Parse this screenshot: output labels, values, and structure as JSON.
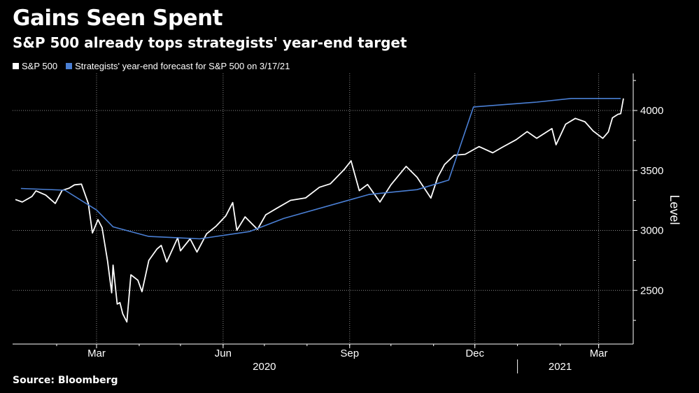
{
  "title": "Gains Seen Spent",
  "subtitle": "S&P 500 already tops strategists' year-end target",
  "source": "Source: Bloomberg",
  "colors": {
    "sp500": "#ffffff",
    "forecast": "#4a7fd4",
    "grid": "#8a8a8a",
    "background": "#000000"
  },
  "chart_data": {
    "type": "line",
    "title": "Gains Seen Spent",
    "subtitle": "S&P 500 already tops strategists' year-end target",
    "xlabel": "",
    "ylabel": "Level",
    "ylim": [
      2150,
      4300
    ],
    "yticks": [
      2500,
      3000,
      3500,
      4000
    ],
    "ytick_labels": [
      "2500",
      "3000",
      "3500",
      "4000"
    ],
    "x_range": [
      "2020-01-02",
      "2021-03-19"
    ],
    "xticks": [
      {
        "date": "2020-03-01",
        "label": "Mar"
      },
      {
        "date": "2020-06-01",
        "label": "Jun"
      },
      {
        "date": "2020-09-01",
        "label": "Sep"
      },
      {
        "date": "2020-12-01",
        "label": "Dec"
      },
      {
        "date": "2021-03-01",
        "label": "Mar"
      }
    ],
    "year_labels": [
      {
        "label": "2020",
        "center": "2020-07-01"
      },
      {
        "label": "2021",
        "center": "2021-02-01"
      }
    ],
    "year_divider": "2021-01-01",
    "grid": true,
    "legend": {
      "placement": "top-left",
      "entries": [
        "S&P 500",
        "Strategists' year-end forecast for S&P 500 on 3/17/21"
      ]
    },
    "series": [
      {
        "name": "S&P 500",
        "color": "#ffffff",
        "points": [
          [
            "2020-01-02",
            3258
          ],
          [
            "2020-01-07",
            3237
          ],
          [
            "2020-01-14",
            3283
          ],
          [
            "2020-01-17",
            3330
          ],
          [
            "2020-01-24",
            3295
          ],
          [
            "2020-01-31",
            3225
          ],
          [
            "2020-02-05",
            3334
          ],
          [
            "2020-02-10",
            3352
          ],
          [
            "2020-02-14",
            3380
          ],
          [
            "2020-02-19",
            3386
          ],
          [
            "2020-02-24",
            3225
          ],
          [
            "2020-02-27",
            2979
          ],
          [
            "2020-03-02",
            3090
          ],
          [
            "2020-03-05",
            3023
          ],
          [
            "2020-03-09",
            2746
          ],
          [
            "2020-03-12",
            2480
          ],
          [
            "2020-03-13",
            2711
          ],
          [
            "2020-03-16",
            2386
          ],
          [
            "2020-03-18",
            2398
          ],
          [
            "2020-03-20",
            2305
          ],
          [
            "2020-03-23",
            2237
          ],
          [
            "2020-03-26",
            2630
          ],
          [
            "2020-03-31",
            2585
          ],
          [
            "2020-04-03",
            2489
          ],
          [
            "2020-04-08",
            2750
          ],
          [
            "2020-04-14",
            2846
          ],
          [
            "2020-04-17",
            2875
          ],
          [
            "2020-04-21",
            2737
          ],
          [
            "2020-04-29",
            2939
          ],
          [
            "2020-05-01",
            2830
          ],
          [
            "2020-05-08",
            2930
          ],
          [
            "2020-05-13",
            2820
          ],
          [
            "2020-05-20",
            2972
          ],
          [
            "2020-05-27",
            3036
          ],
          [
            "2020-06-03",
            3122
          ],
          [
            "2020-06-08",
            3232
          ],
          [
            "2020-06-11",
            3002
          ],
          [
            "2020-06-17",
            3113
          ],
          [
            "2020-06-26",
            3009
          ],
          [
            "2020-07-02",
            3130
          ],
          [
            "2020-07-10",
            3185
          ],
          [
            "2020-07-20",
            3251
          ],
          [
            "2020-07-31",
            3271
          ],
          [
            "2020-08-10",
            3360
          ],
          [
            "2020-08-18",
            3389
          ],
          [
            "2020-08-28",
            3508
          ],
          [
            "2020-09-02",
            3580
          ],
          [
            "2020-09-08",
            3332
          ],
          [
            "2020-09-14",
            3383
          ],
          [
            "2020-09-23",
            3237
          ],
          [
            "2020-10-01",
            3380
          ],
          [
            "2020-10-12",
            3534
          ],
          [
            "2020-10-20",
            3443
          ],
          [
            "2020-10-30",
            3270
          ],
          [
            "2020-11-04",
            3443
          ],
          [
            "2020-11-09",
            3550
          ],
          [
            "2020-11-16",
            3627
          ],
          [
            "2020-11-24",
            3635
          ],
          [
            "2020-12-04",
            3699
          ],
          [
            "2020-12-14",
            3647
          ],
          [
            "2020-12-21",
            3694
          ],
          [
            "2020-12-31",
            3756
          ],
          [
            "2021-01-08",
            3824
          ],
          [
            "2021-01-15",
            3768
          ],
          [
            "2021-01-26",
            3849
          ],
          [
            "2021-01-29",
            3714
          ],
          [
            "2021-02-05",
            3886
          ],
          [
            "2021-02-12",
            3934
          ],
          [
            "2021-02-19",
            3906
          ],
          [
            "2021-02-25",
            3829
          ],
          [
            "2021-03-04",
            3768
          ],
          [
            "2021-03-08",
            3821
          ],
          [
            "2021-03-11",
            3939
          ],
          [
            "2021-03-15",
            3968
          ],
          [
            "2021-03-17",
            3974
          ],
          [
            "2021-03-19",
            4100
          ]
        ]
      },
      {
        "name": "Strategists' year-end forecast for S&P 500 on 3/17/21",
        "color": "#4a7fd4",
        "points": [
          [
            "2020-01-06",
            3350
          ],
          [
            "2020-02-07",
            3335
          ],
          [
            "2020-03-01",
            3170
          ],
          [
            "2020-03-13",
            3030
          ],
          [
            "2020-04-08",
            2950
          ],
          [
            "2020-05-15",
            2930
          ],
          [
            "2020-06-20",
            2990
          ],
          [
            "2020-07-15",
            3100
          ],
          [
            "2020-09-15",
            3300
          ],
          [
            "2020-10-20",
            3340
          ],
          [
            "2020-11-12",
            3420
          ],
          [
            "2020-11-30",
            4030
          ],
          [
            "2021-01-15",
            4070
          ],
          [
            "2021-02-09",
            4100
          ],
          [
            "2021-03-17",
            4100
          ]
        ]
      }
    ]
  },
  "axis_title": "Level"
}
